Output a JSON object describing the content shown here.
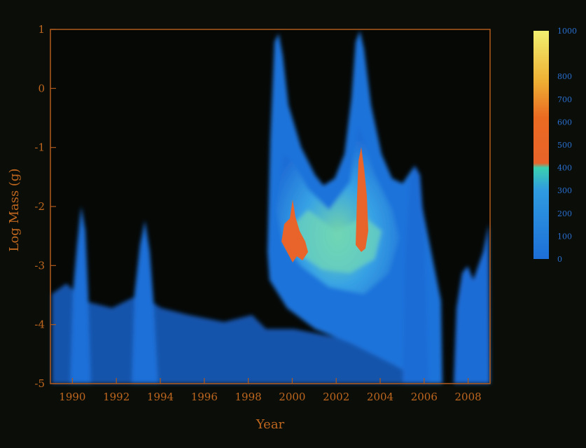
{
  "chart_data": {
    "type": "heatmap",
    "title": "",
    "xlabel": "Year",
    "ylabel": "Log Mass (g)",
    "xlim": [
      1989,
      2009
    ],
    "ylim": [
      -5,
      1
    ],
    "x_ticks": [
      1990,
      1992,
      1994,
      1996,
      1998,
      2000,
      2002,
      2004,
      2006,
      2008
    ],
    "y_ticks": [
      -5,
      -4,
      -3,
      -2,
      -1,
      0,
      1
    ],
    "colorbar": {
      "ticks": [
        0,
        100,
        200,
        300,
        400,
        500,
        600,
        700,
        800,
        1000
      ],
      "range": [
        0,
        1000
      ],
      "position": "right"
    },
    "grid": false,
    "legend": "colorbar-right",
    "features": [
      {
        "year": 1990.4,
        "logmass_top": -1.9,
        "intensity": 150
      },
      {
        "year": 1993.3,
        "logmass_top": -2.2,
        "intensity": 150
      },
      {
        "year": 1999.3,
        "logmass_top": 1.0,
        "intensity": 300
      },
      {
        "year": 2002.8,
        "logmass_top": 1.0,
        "intensity": 300
      },
      {
        "year": 2005.7,
        "logmass_top": -1.3,
        "intensity": 160
      },
      {
        "year": 2008.8,
        "logmass_top": -2.3,
        "intensity": 150
      }
    ],
    "hotspots": [
      {
        "year": 2000.0,
        "logmass": -2.5,
        "intensity": 600
      },
      {
        "year": 2003.0,
        "logmass": -1.9,
        "intensity": 650
      }
    ]
  }
}
